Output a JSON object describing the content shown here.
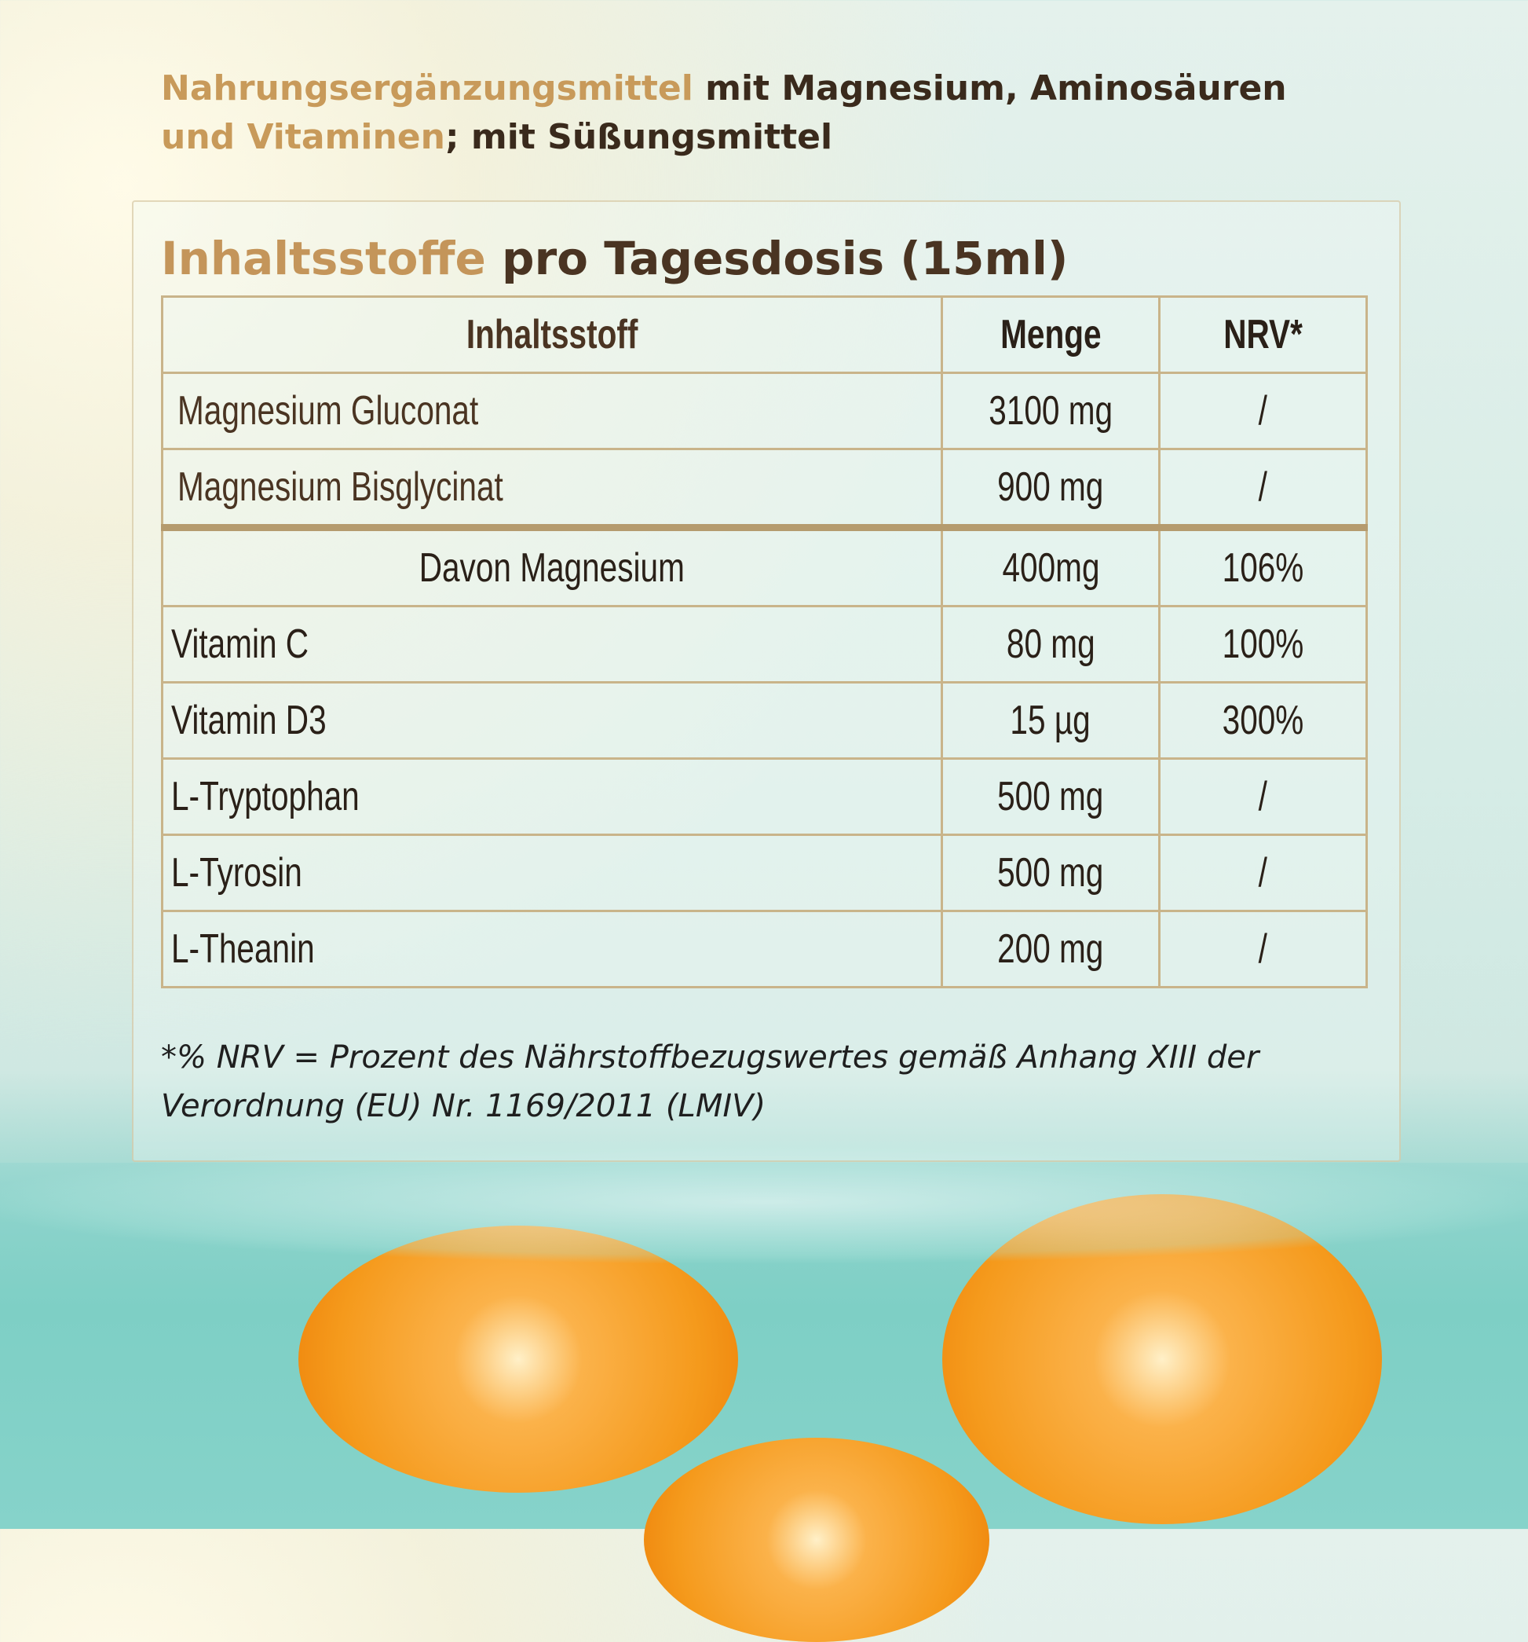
{
  "title": {
    "line1_gold": "Nahrungsergänzungsmittel",
    "line1_dark": " mit Magnesium, Aminosäuren",
    "line2_gold": "und Vitaminen",
    "line2_dark": "; mit Süßungsmittel"
  },
  "heading": {
    "gold": "Inhaltsstoffe",
    "dark": " pro Tagesdosis (15ml)"
  },
  "table": {
    "headers": [
      "Inhaltsstoff",
      "Menge",
      "NRV*"
    ],
    "rows": [
      {
        "name": "Magnesium Gluconat",
        "amount": "3100 mg",
        "nrv": "/"
      },
      {
        "name": "Magnesium Bisglycinat",
        "amount": "900 mg",
        "nrv": "/"
      },
      {
        "name": "Davon Magnesium",
        "amount": "400mg",
        "nrv": "106%"
      },
      {
        "name": "Vitamin C",
        "amount": "80 mg",
        "nrv": "100%"
      },
      {
        "name": "Vitamin D3",
        "amount": "15 µg",
        "nrv": "300%"
      },
      {
        "name": "L-Tryptophan",
        "amount": "500 mg",
        "nrv": "/"
      },
      {
        "name": "L-Tyrosin",
        "amount": "500 mg",
        "nrv": "/"
      },
      {
        "name": "L-Theanin",
        "amount": "200 mg",
        "nrv": "/"
      }
    ]
  },
  "footnote": "*% NRV = Prozent des Nährstoffbezugswertes gemäß Anhang XIII der Verordnung (EU) Nr. 1169/2011 (LMIV)",
  "colors": {
    "gold": "#c89a5a",
    "border": "#c9b48a",
    "water": "#7ecfc5",
    "orange": "#f59a1c"
  }
}
